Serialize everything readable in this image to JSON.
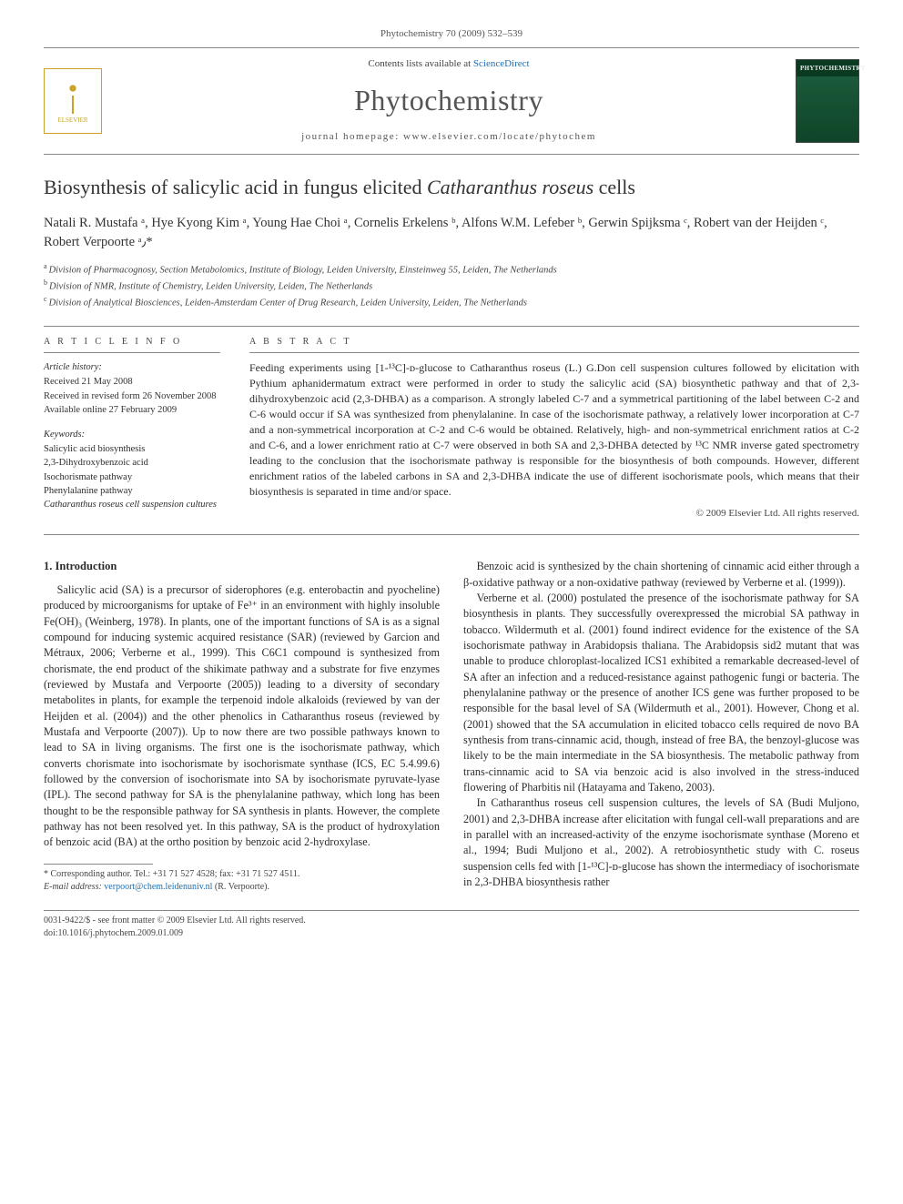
{
  "header": {
    "citation": "Phytochemistry 70 (2009) 532–539",
    "contents_available": "Contents lists available at",
    "sciencedirect": "ScienceDirect",
    "journal_title": "Phytochemistry",
    "homepage_label": "journal homepage: www.elsevier.com/locate/phytochem",
    "elsevier_label": "ELSEVIER",
    "cover_label": "PHYTOCHEMISTRY"
  },
  "article": {
    "title_pre": "Biosynthesis of salicylic acid in fungus elicited ",
    "title_em": "Catharanthus roseus",
    "title_post": " cells",
    "authors_html": "Natali R. Mustafa ᵃ, Hye Kyong Kim ᵃ, Young Hae Choi ᵃ, Cornelis Erkelens ᵇ, Alfons W.M. Lefeber ᵇ, Gerwin Spijksma ᶜ, Robert van der Heijden ᶜ, Robert Verpoorte ᵃ٫*",
    "affiliations": {
      "a": "Division of Pharmacognosy, Section Metabolomics, Institute of Biology, Leiden University, Einsteinweg 55, Leiden, The Netherlands",
      "b": "Division of NMR, Institute of Chemistry, Leiden University, Leiden, The Netherlands",
      "c": "Division of Analytical Biosciences, Leiden-Amsterdam Center of Drug Research, Leiden University, Leiden, The Netherlands"
    }
  },
  "info": {
    "heading": "A R T I C L E   I N F O",
    "history_label": "Article history:",
    "received": "Received 21 May 2008",
    "revised": "Received in revised form 26 November 2008",
    "online": "Available online 27 February 2009",
    "keywords_label": "Keywords:",
    "keywords": [
      "Salicylic acid biosynthesis",
      "2,3-Dihydroxybenzoic acid",
      "Isochorismate pathway",
      "Phenylalanine pathway",
      "Catharanthus roseus cell suspension cultures"
    ]
  },
  "abstract": {
    "heading": "A B S T R A C T",
    "text": "Feeding experiments using [1-¹³C]-ᴅ-glucose to Catharanthus roseus (L.) G.Don cell suspension cultures followed by elicitation with Pythium aphanidermatum extract were performed in order to study the salicylic acid (SA) biosynthetic pathway and that of 2,3-dihydroxybenzoic acid (2,3-DHBA) as a comparison. A strongly labeled C-7 and a symmetrical partitioning of the label between C-2 and C-6 would occur if SA was synthesized from phenylalanine. In case of the isochorismate pathway, a relatively lower incorporation at C-7 and a non-symmetrical incorporation at C-2 and C-6 would be obtained. Relatively, high- and non-symmetrical enrichment ratios at C-2 and C-6, and a lower enrichment ratio at C-7 were observed in both SA and 2,3-DHBA detected by ¹³C NMR inverse gated spectrometry leading to the conclusion that the isochorismate pathway is responsible for the biosynthesis of both compounds. However, different enrichment ratios of the labeled carbons in SA and 2,3-DHBA indicate the use of different isochorismate pools, which means that their biosynthesis is separated in time and/or space.",
    "copyright": "© 2009 Elsevier Ltd. All rights reserved."
  },
  "body": {
    "section_heading": "1. Introduction",
    "p1": "Salicylic acid (SA) is a precursor of siderophores (e.g. enterobactin and pyocheline) produced by microorganisms for uptake of Fe³⁺ in an environment with highly insoluble Fe(OH)₃ (Weinberg, 1978). In plants, one of the important functions of SA is as a signal compound for inducing systemic acquired resistance (SAR) (reviewed by Garcion and Métraux, 2006; Verberne et al., 1999). This C6C1 compound is synthesized from chorismate, the end product of the shikimate pathway and a substrate for five enzymes (reviewed by Mustafa and Verpoorte (2005)) leading to a diversity of secondary metabolites in plants, for example the terpenoid indole alkaloids (reviewed by van der Heijden et al. (2004)) and the other phenolics in Catharanthus roseus (reviewed by Mustafa and Verpoorte (2007)). Up to now there are two possible pathways known to lead to SA in living organisms. The first one is the isochorismate pathway, which converts chorismate into isochorismate by isochorismate synthase (ICS, EC 5.4.99.6) followed by the conversion of isochorismate into SA by isochorismate pyruvate-lyase (IPL). The second pathway for SA is the phenylalanine pathway, which long has been thought to be the responsible pathway for SA synthesis in plants. However, the complete pathway has not been resolved yet. In this pathway, SA is the product of hydroxylation of benzoic acid (BA) at the ortho position by benzoic acid 2-hydroxylase.",
    "p2": "Benzoic acid is synthesized by the chain shortening of cinnamic acid either through a β-oxidative pathway or a non-oxidative pathway (reviewed by Verberne et al. (1999)).",
    "p3": "Verberne et al. (2000) postulated the presence of the isochorismate pathway for SA biosynthesis in plants. They successfully overexpressed the microbial SA pathway in tobacco. Wildermuth et al. (2001) found indirect evidence for the existence of the SA isochorismate pathway in Arabidopsis thaliana. The Arabidopsis sid2 mutant that was unable to produce chloroplast-localized ICS1 exhibited a remarkable decreased-level of SA after an infection and a reduced-resistance against pathogenic fungi or bacteria. The phenylalanine pathway or the presence of another ICS gene was further proposed to be responsible for the basal level of SA (Wildermuth et al., 2001). However, Chong et al. (2001) showed that the SA accumulation in elicited tobacco cells required de novo BA synthesis from trans-cinnamic acid, though, instead of free BA, the benzoyl-glucose was likely to be the main intermediate in the SA biosynthesis. The metabolic pathway from trans-cinnamic acid to SA via benzoic acid is also involved in the stress-induced flowering of Pharbitis nil (Hatayama and Takeno, 2003).",
    "p4": "In Catharanthus roseus cell suspension cultures, the levels of SA (Budi Muljono, 2001) and 2,3-DHBA increase after elicitation with fungal cell-wall preparations and are in parallel with an increased-activity of the enzyme isochorismate synthase (Moreno et al., 1994; Budi Muljono et al., 2002). A retrobiosynthetic study with C. roseus suspension cells fed with [1-¹³C]-ᴅ-glucose has shown the intermediacy of isochorismate in 2,3-DHBA biosynthesis rather"
  },
  "footnote": {
    "corr_label": "* Corresponding author. Tel.: +31 71 527 4528; fax: +31 71 527 4511.",
    "email_label": "E-mail address:",
    "email": "verpoort@chem.leidenuniv.nl",
    "email_tail": "(R. Verpoorte)."
  },
  "footer": {
    "left": "0031-9422/$ - see front matter © 2009 Elsevier Ltd. All rights reserved.",
    "doi": "doi:10.1016/j.phytochem.2009.01.009"
  },
  "colors": {
    "link": "#1f6fb2",
    "rule": "#888888",
    "text": "#2c2c2c",
    "elsevier": "#c9a227",
    "cover_bg": "#0a3a1f"
  }
}
